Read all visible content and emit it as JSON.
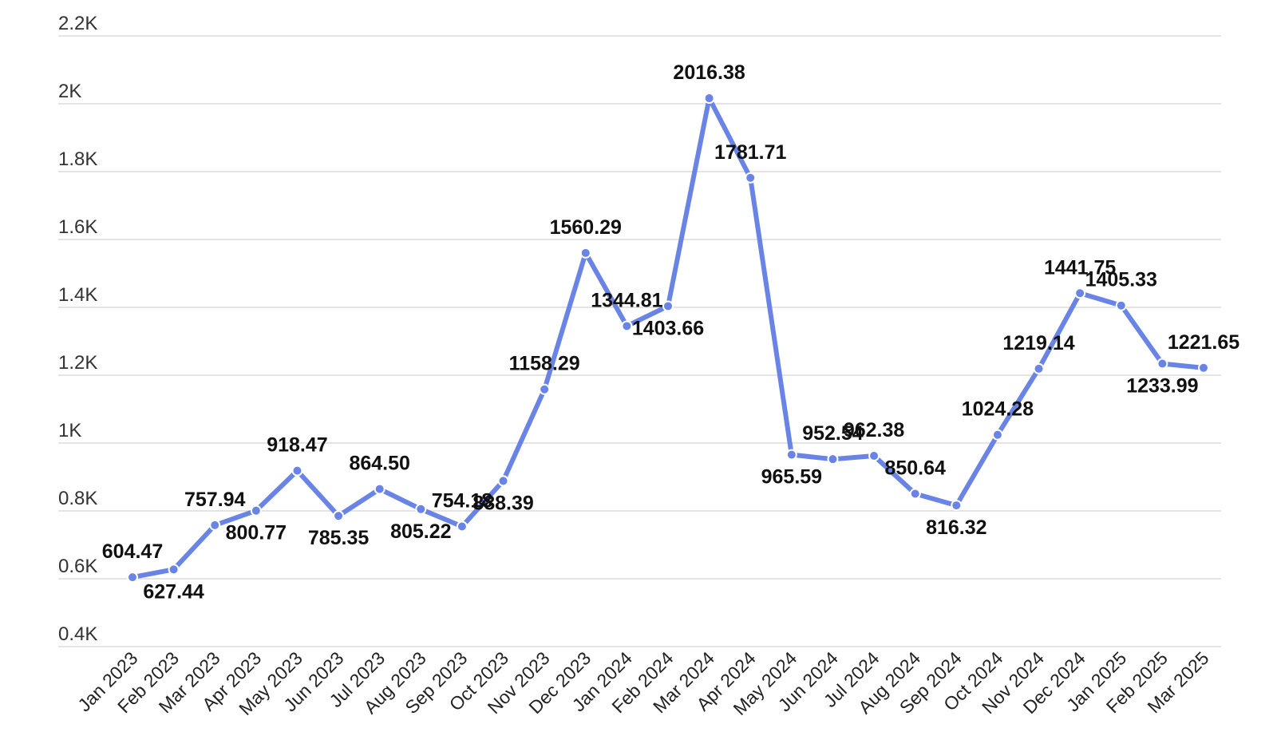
{
  "chart_data": {
    "type": "line",
    "title": "",
    "xlabel": "",
    "ylabel": "",
    "ylim": [
      400,
      2200
    ],
    "yticks": [
      {
        "value": 400,
        "label": "0.4K"
      },
      {
        "value": 600,
        "label": "0.6K"
      },
      {
        "value": 800,
        "label": "0.8K"
      },
      {
        "value": 1000,
        "label": "1K"
      },
      {
        "value": 1200,
        "label": "1.2K"
      },
      {
        "value": 1400,
        "label": "1.4K"
      },
      {
        "value": 1600,
        "label": "1.6K"
      },
      {
        "value": 1800,
        "label": "1.8K"
      },
      {
        "value": 2000,
        "label": "2K"
      },
      {
        "value": 2200,
        "label": "2.2K"
      }
    ],
    "grid": true,
    "legend": "none",
    "color": "#6a84e6",
    "categories": [
      "Jan 2023",
      "Feb 2023",
      "Mar 2023",
      "Apr 2023",
      "May 2023",
      "Jun 2023",
      "Jul 2023",
      "Aug 2023",
      "Sep 2023",
      "Oct 2023",
      "Nov 2023",
      "Dec 2023",
      "Jan 2024",
      "Feb 2024",
      "Mar 2024",
      "Apr 2024",
      "May 2024",
      "Jun 2024",
      "Jul 2024",
      "Aug 2024",
      "Sep 2024",
      "Oct 2024",
      "Nov 2024",
      "Dec 2024",
      "Jan 2025",
      "Feb 2025",
      "Mar 2025"
    ],
    "values": [
      604.47,
      627.44,
      757.94,
      800.77,
      918.47,
      785.35,
      864.5,
      805.22,
      754.18,
      888.39,
      1158.29,
      1560.29,
      1344.81,
      1403.66,
      2016.38,
      1781.71,
      965.59,
      952.54,
      962.38,
      850.64,
      816.32,
      1024.28,
      1219.14,
      1441.75,
      1405.33,
      1233.99,
      1221.65
    ],
    "labels": [
      "604.47",
      "627.44",
      "757.94",
      "800.77",
      "918.47",
      "785.35",
      "864.50",
      "805.22",
      "754.18",
      "888.39",
      "1158.29",
      "1560.29",
      "1344.81",
      "1403.66",
      "2016.38",
      "1781.71",
      "965.59",
      "952.54",
      "962.38",
      "850.64",
      "816.32",
      "1024.28",
      "1219.14",
      "1441.75",
      "1405.33",
      "1233.99",
      "1221.65"
    ]
  }
}
